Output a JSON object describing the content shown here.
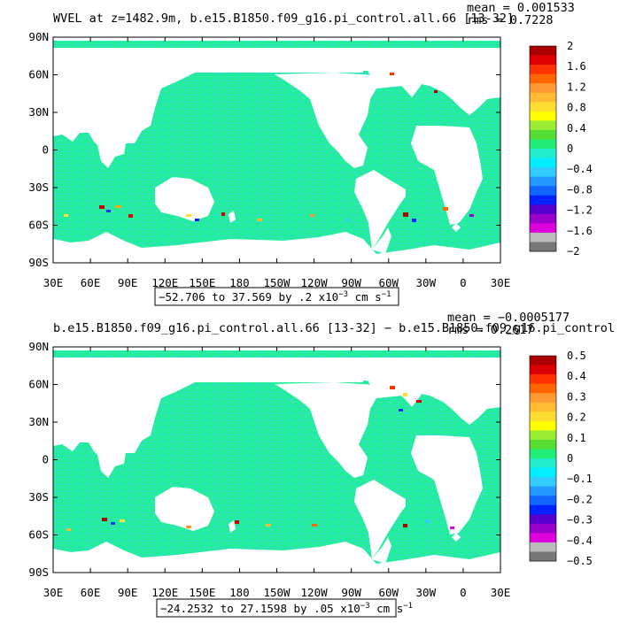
{
  "colors": {
    "land": "#ffffff",
    "ocean_base": "#22ee99",
    "ocean_alt": "#33ddcc",
    "frame": "#000000"
  },
  "panels": [
    {
      "title": "WVEL at z=1482.9m, b.e15.B1850.f09_g16.pi_control.all.66 [13-32]",
      "mean_text": "mean = 0.001533",
      "rms_text": "rms = 0.7228",
      "range_text": "−52.706 to 37.569 by .2 x10",
      "range_exp": "−3",
      "range_unit": " cm s",
      "range_unit_exp": "−1",
      "colorbar_labels": [
        "2",
        "1.6",
        "1.2",
        "0.8",
        "0.4",
        "0",
        "−0.4",
        "−0.8",
        "−1.2",
        "−1.6",
        "−2"
      ]
    },
    {
      "title": "b.e15.B1850.f09_g16.pi_control.all.66 [13-32] − b.e15.B1850.f09_g16.pi_control",
      "mean_text": "mean = −0.0005177",
      "rms_text": "rms = 0.2617",
      "range_text": "−24.2532 to 27.1598 by .05 x10",
      "range_exp": "−3",
      "range_unit": " cm s",
      "range_unit_exp": "−1",
      "colorbar_labels": [
        "0.5",
        "0.4",
        "0.3",
        "0.2",
        "0.1",
        "0",
        "−0.1",
        "−0.2",
        "−0.3",
        "−0.4",
        "−0.5"
      ]
    }
  ],
  "x_ticks": [
    "30E",
    "60E",
    "90E",
    "120E",
    "150E",
    "180",
    "150W",
    "120W",
    "90W",
    "60W",
    "30W",
    "0",
    "30E"
  ],
  "y_ticks": [
    "90N",
    "60N",
    "30N",
    "0",
    "30S",
    "60S",
    "90S"
  ],
  "colorbar_colors": [
    "#aa0000",
    "#dd0000",
    "#ff3300",
    "#ff6600",
    "#ff9933",
    "#ffbb33",
    "#ffdd33",
    "#ffff00",
    "#99ee33",
    "#55dd33",
    "#22ee77",
    "#22eecc",
    "#00eeff",
    "#33ccff",
    "#2299ff",
    "#1166ff",
    "#0022ff",
    "#5500cc",
    "#9900cc",
    "#dd00dd",
    "#bbbbbb",
    "#777777"
  ]
}
